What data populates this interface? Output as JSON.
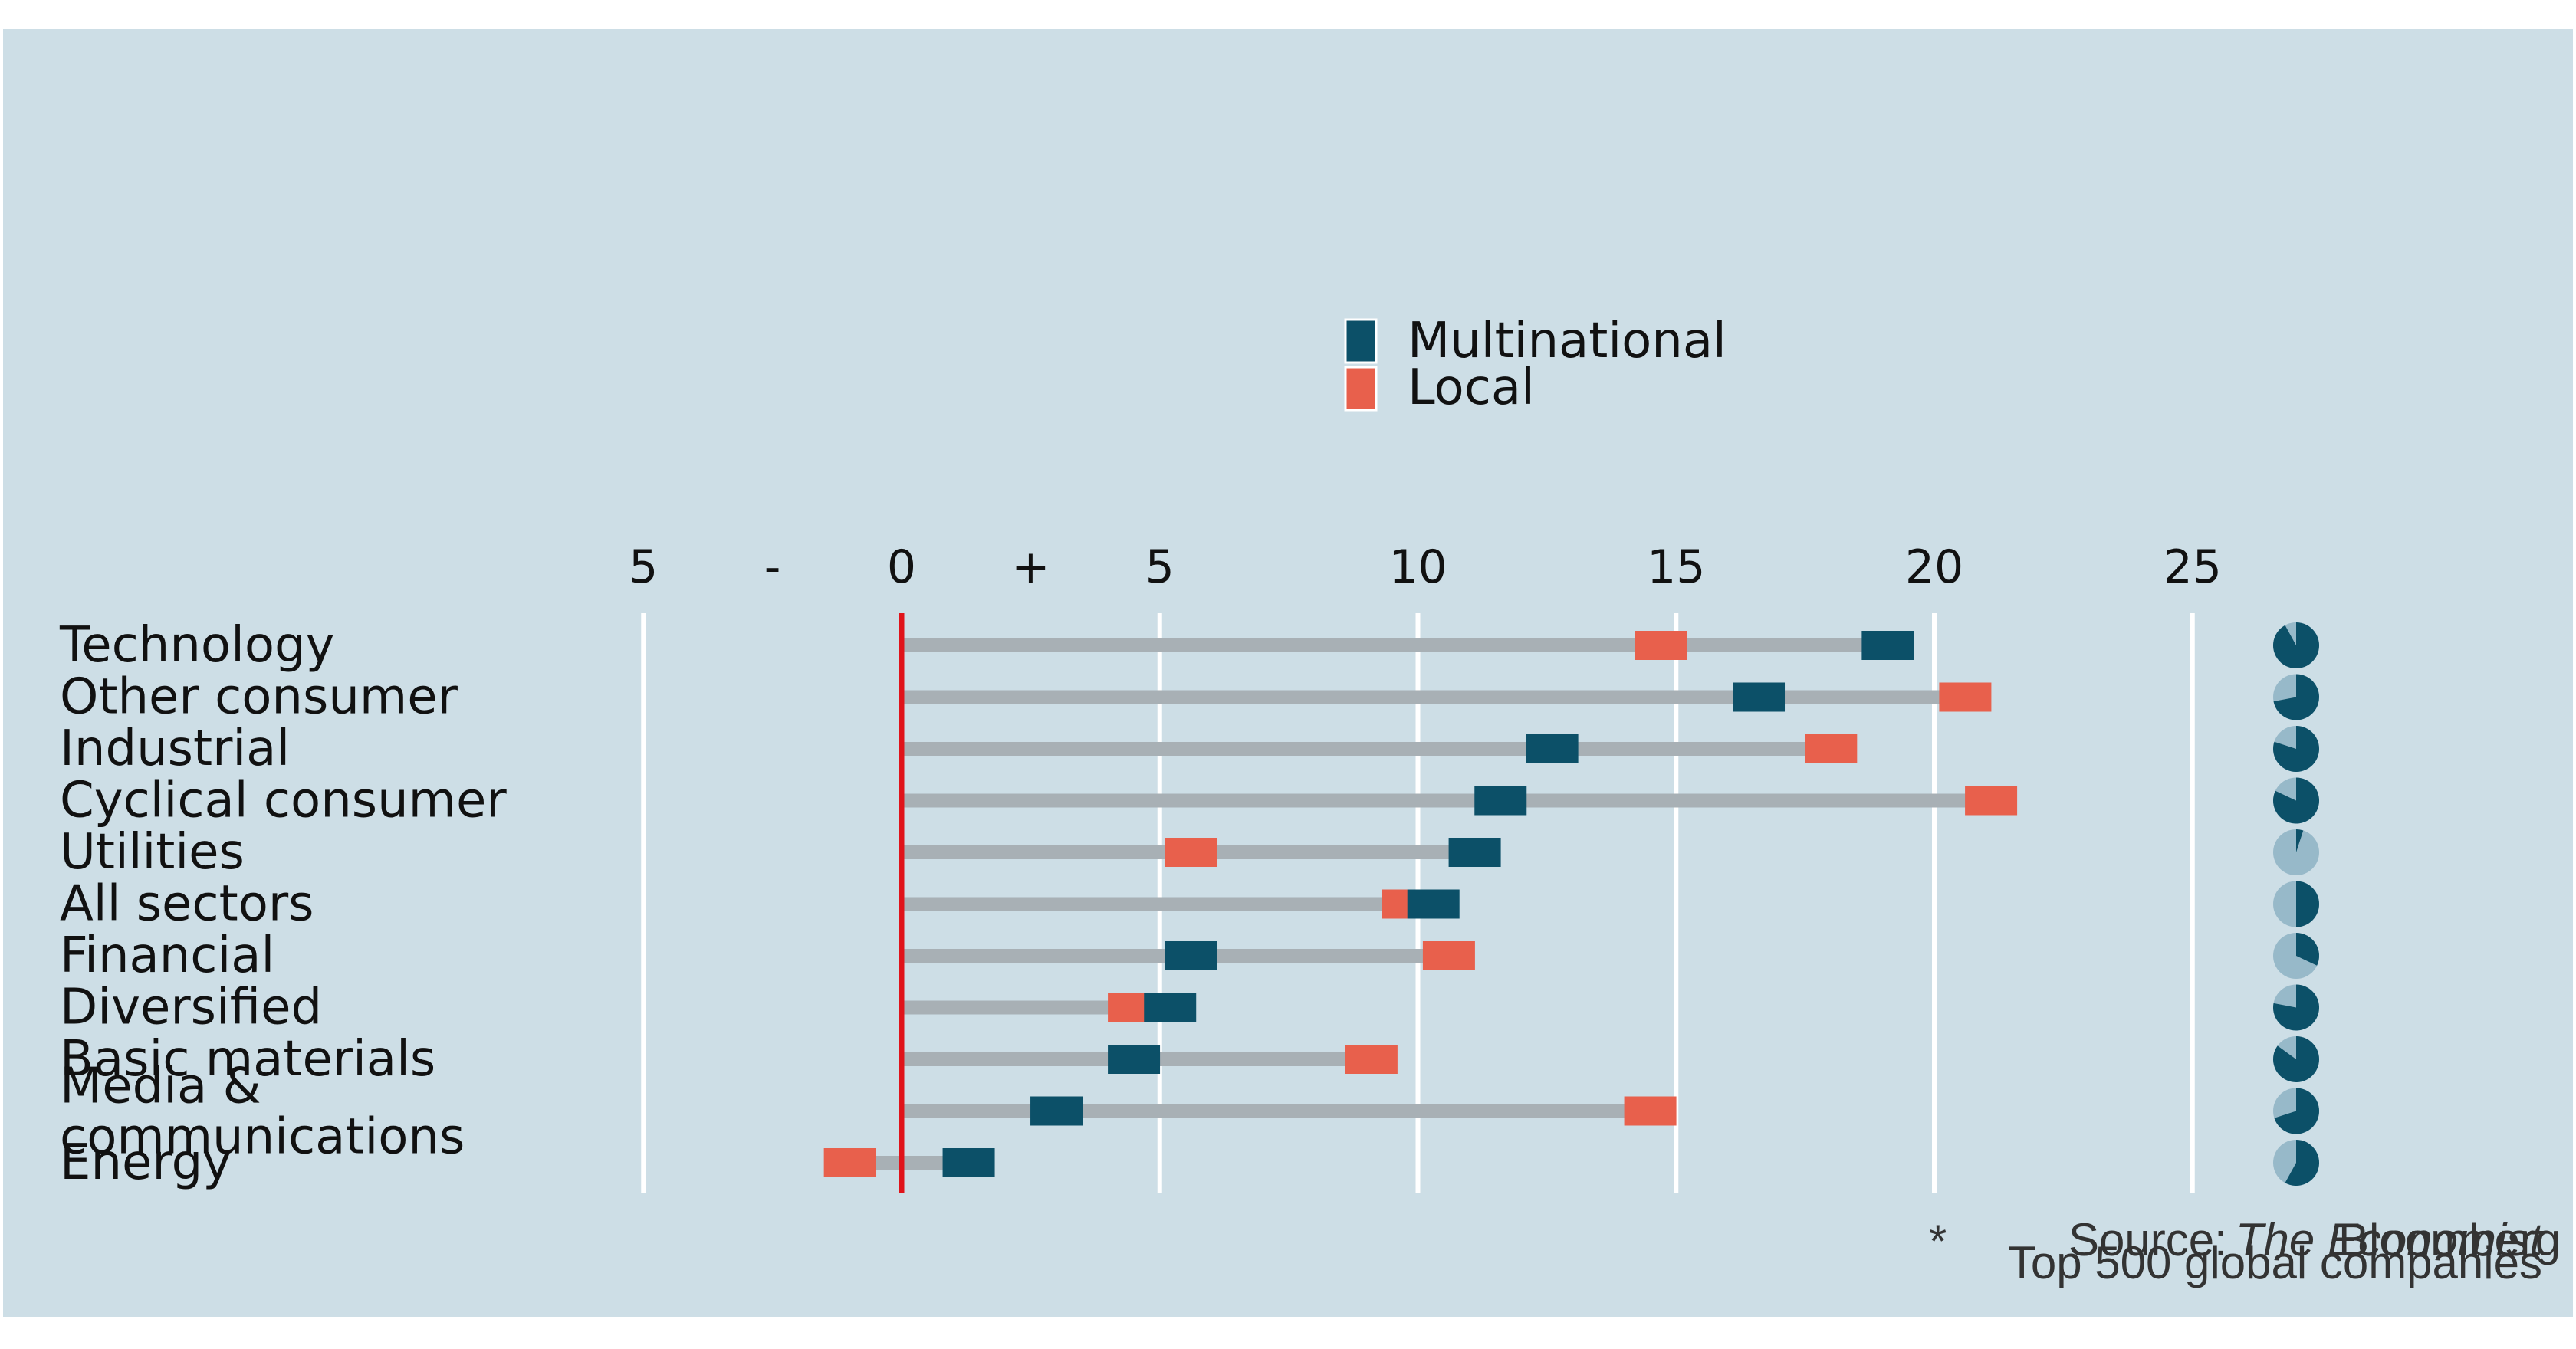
{
  "chart_data": {
    "type": "dumbbell",
    "title": "",
    "legend": {
      "placement": "top-center",
      "entries": [
        {
          "label": "Multinational",
          "color": "#0c5068"
        },
        {
          "label": "Local",
          "color": "#e8604c"
        }
      ]
    },
    "xaxis": {
      "range": [
        -5,
        27
      ],
      "ticks": [
        {
          "value": -5,
          "label": "5"
        },
        {
          "value": -2.5,
          "label": "-"
        },
        {
          "value": 0,
          "label": "0"
        },
        {
          "value": 2.5,
          "label": "+"
        },
        {
          "value": 5,
          "label": "5"
        },
        {
          "value": 10,
          "label": "10"
        },
        {
          "value": 15,
          "label": "15"
        },
        {
          "value": 20,
          "label": "20"
        },
        {
          "value": 25,
          "label": "25"
        }
      ],
      "gridlines": [
        -5,
        5,
        10,
        15,
        20,
        25
      ],
      "zero_line_color": "#e0131a"
    },
    "categories": [
      "Technology",
      "Other consumer",
      "Industrial",
      "Cyclical consumer",
      "Utilities",
      "All sectors",
      "Financial",
      "Diversified",
      "Basic materials",
      "Media & communications",
      "Energy"
    ],
    "series": [
      {
        "name": "Multinational",
        "color": "#0c5068",
        "values": [
          19.1,
          16.6,
          12.6,
          11.6,
          11.1,
          10.3,
          5.6,
          5.2,
          4.5,
          3.0,
          1.3
        ]
      },
      {
        "name": "Local",
        "color": "#e8604c",
        "values": [
          14.7,
          20.6,
          18.0,
          21.1,
          5.6,
          9.8,
          10.6,
          4.5,
          9.1,
          14.5,
          -1.0
        ]
      }
    ],
    "range_bar_color": "#a8b0b5",
    "pie_share": {
      "description": "share indicator per sector",
      "dark_color": "#0c5068",
      "light_color": "#97b9c9",
      "values": [
        0.92,
        0.72,
        0.8,
        0.82,
        0.05,
        0.5,
        0.32,
        0.78,
        0.85,
        0.7,
        0.58
      ]
    },
    "footnotes": {
      "source_label": "Source:",
      "source_name": "Bloomberg",
      "publisher": "The Economist",
      "note_mark": "*",
      "note": "Top 500 global companies"
    }
  }
}
